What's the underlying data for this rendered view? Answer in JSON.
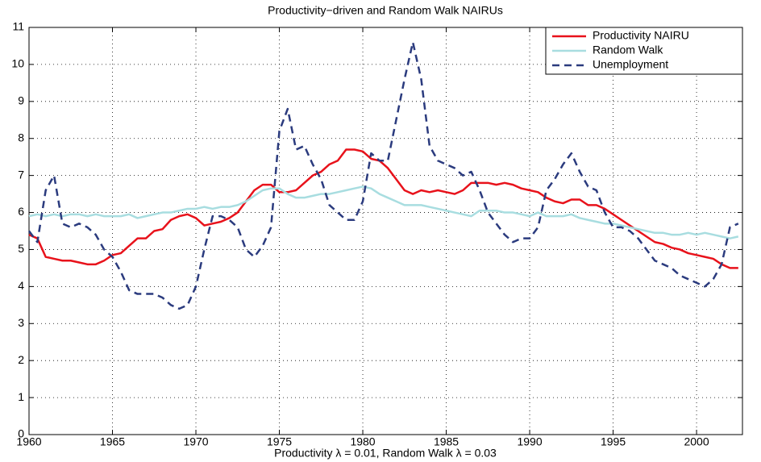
{
  "chart_data": {
    "type": "line",
    "title": "Productivity−driven and Random Walk NAIRUs",
    "x_label": "Productivity λ = 0.01,  Random Walk λ = 0.03",
    "x": [
      1960,
      1960.5,
      1961,
      1961.5,
      1962,
      1962.5,
      1963,
      1963.5,
      1964,
      1964.5,
      1965,
      1965.5,
      1966,
      1966.5,
      1967,
      1967.5,
      1968,
      1968.5,
      1969,
      1969.5,
      1970,
      1970.5,
      1971,
      1971.5,
      1972,
      1972.5,
      1973,
      1973.5,
      1974,
      1974.5,
      1975,
      1975.5,
      1976,
      1976.5,
      1977,
      1977.5,
      1978,
      1978.5,
      1979,
      1979.5,
      1980,
      1980.5,
      1981,
      1981.5,
      1982,
      1982.5,
      1983,
      1983.5,
      1984,
      1984.5,
      1985,
      1985.5,
      1986,
      1986.5,
      1987,
      1987.5,
      1988,
      1988.5,
      1989,
      1989.5,
      1990,
      1990.5,
      1991,
      1991.5,
      1992,
      1992.5,
      1993,
      1993.5,
      1994,
      1994.5,
      1995,
      1995.5,
      1996,
      1996.5,
      1997,
      1997.5,
      1998,
      1998.5,
      1999,
      1999.5,
      2000,
      2000.5,
      2001,
      2001.5,
      2002,
      2002.5
    ],
    "series": [
      {
        "name": "Productivity NAIRU",
        "color": "#e8121b",
        "style": "solid",
        "values": [
          5.4,
          5.3,
          4.8,
          4.75,
          4.7,
          4.7,
          4.65,
          4.6,
          4.6,
          4.7,
          4.85,
          4.9,
          5.1,
          5.3,
          5.3,
          5.5,
          5.55,
          5.8,
          5.9,
          5.95,
          5.85,
          5.65,
          5.7,
          5.75,
          5.85,
          6.0,
          6.3,
          6.6,
          6.75,
          6.75,
          6.55,
          6.55,
          6.6,
          6.8,
          7.0,
          7.1,
          7.3,
          7.4,
          7.7,
          7.7,
          7.65,
          7.45,
          7.4,
          7.2,
          6.9,
          6.6,
          6.5,
          6.6,
          6.55,
          6.6,
          6.55,
          6.5,
          6.6,
          6.8,
          6.8,
          6.8,
          6.75,
          6.8,
          6.75,
          6.65,
          6.6,
          6.55,
          6.4,
          6.3,
          6.25,
          6.35,
          6.35,
          6.2,
          6.2,
          6.1,
          5.95,
          5.8,
          5.65,
          5.5,
          5.35,
          5.2,
          5.15,
          5.05,
          5.0,
          4.9,
          4.85,
          4.8,
          4.75,
          4.6,
          4.5,
          4.5
        ]
      },
      {
        "name": "Random Walk",
        "color": "#a8dde0",
        "style": "solid",
        "values": [
          5.9,
          5.95,
          5.9,
          5.95,
          5.9,
          5.95,
          5.95,
          5.9,
          5.95,
          5.9,
          5.9,
          5.9,
          5.95,
          5.85,
          5.9,
          5.95,
          6.0,
          6.0,
          6.05,
          6.1,
          6.1,
          6.15,
          6.1,
          6.15,
          6.15,
          6.2,
          6.3,
          6.45,
          6.6,
          6.65,
          6.65,
          6.5,
          6.4,
          6.4,
          6.45,
          6.5,
          6.5,
          6.55,
          6.6,
          6.65,
          6.7,
          6.65,
          6.5,
          6.4,
          6.3,
          6.2,
          6.2,
          6.2,
          6.15,
          6.1,
          6.05,
          6.0,
          5.95,
          5.9,
          6.05,
          6.05,
          6.05,
          6.0,
          6.0,
          5.95,
          5.9,
          6.0,
          5.9,
          5.9,
          5.9,
          5.95,
          5.85,
          5.8,
          5.75,
          5.7,
          5.7,
          5.65,
          5.6,
          5.55,
          5.5,
          5.45,
          5.45,
          5.4,
          5.4,
          5.45,
          5.4,
          5.45,
          5.4,
          5.35,
          5.3,
          5.35
        ]
      },
      {
        "name": "Unemployment",
        "color": "#2b3b7e",
        "style": "dashed",
        "values": [
          5.5,
          5.2,
          6.6,
          7.0,
          5.7,
          5.6,
          5.7,
          5.6,
          5.4,
          5.0,
          4.8,
          4.4,
          3.9,
          3.8,
          3.8,
          3.8,
          3.7,
          3.5,
          3.4,
          3.5,
          4.0,
          5.0,
          5.9,
          5.9,
          5.8,
          5.6,
          5.0,
          4.8,
          5.1,
          5.6,
          8.2,
          8.8,
          7.7,
          7.8,
          7.3,
          6.9,
          6.2,
          6.0,
          5.8,
          5.8,
          6.3,
          7.6,
          7.4,
          7.4,
          8.5,
          9.6,
          10.6,
          9.6,
          7.8,
          7.4,
          7.3,
          7.2,
          7.0,
          7.1,
          6.6,
          6.0,
          5.7,
          5.4,
          5.2,
          5.3,
          5.3,
          5.6,
          6.6,
          6.9,
          7.3,
          7.6,
          7.1,
          6.7,
          6.6,
          6.0,
          5.6,
          5.6,
          5.5,
          5.3,
          5.0,
          4.7,
          4.6,
          4.5,
          4.3,
          4.2,
          4.1,
          4.0,
          4.2,
          4.6,
          5.6,
          5.7
        ]
      }
    ],
    "xlim": [
      1960,
      2002.75
    ],
    "xticks": [
      1960,
      1965,
      1970,
      1975,
      1980,
      1985,
      1990,
      1995,
      2000
    ],
    "ylim": [
      0,
      11
    ],
    "yticks": [
      0,
      1,
      2,
      3,
      4,
      5,
      6,
      7,
      8,
      9,
      10,
      11
    ],
    "grid": true,
    "legend": "top-right"
  }
}
